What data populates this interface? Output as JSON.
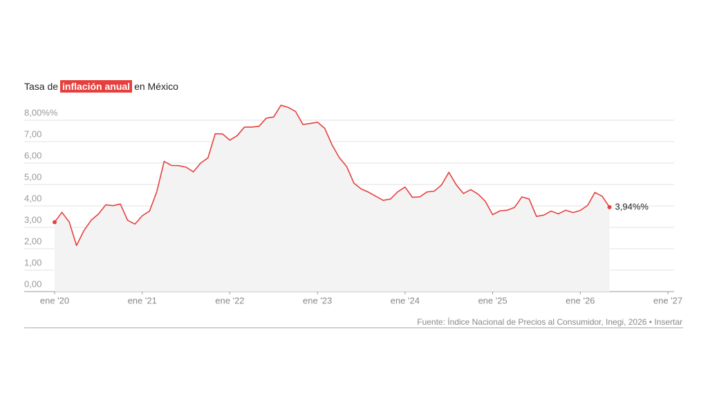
{
  "chart_data": {
    "type": "line",
    "title_parts": [
      "Tasa de",
      "inflación anual",
      "en México"
    ],
    "x": [
      "2020-01",
      "2020-02",
      "2020-03",
      "2020-04",
      "2020-05",
      "2020-06",
      "2020-07",
      "2020-08",
      "2020-09",
      "2020-10",
      "2020-11",
      "2020-12",
      "2021-01",
      "2021-02",
      "2021-03",
      "2021-04",
      "2021-05",
      "2021-06",
      "2021-07",
      "2021-08",
      "2021-09",
      "2021-10",
      "2021-11",
      "2021-12",
      "2022-01",
      "2022-02",
      "2022-03",
      "2022-04",
      "2022-05",
      "2022-06",
      "2022-07",
      "2022-08",
      "2022-09",
      "2022-10",
      "2022-11",
      "2022-12",
      "2023-01",
      "2023-02",
      "2023-03",
      "2023-04",
      "2023-05",
      "2023-06",
      "2023-07",
      "2023-08",
      "2023-09",
      "2023-10",
      "2023-11",
      "2023-12",
      "2024-01",
      "2024-02",
      "2024-03",
      "2024-04",
      "2024-05",
      "2024-06",
      "2024-07",
      "2024-08",
      "2024-09",
      "2024-10",
      "2024-11",
      "2024-12",
      "2025-01",
      "2025-02",
      "2025-03",
      "2025-04",
      "2025-05",
      "2025-06",
      "2025-07",
      "2025-08",
      "2025-09",
      "2025-10",
      "2025-11",
      "2025-12",
      "2026-01",
      "2026-02",
      "2026-03",
      "2026-04",
      "2026-05"
    ],
    "series": [
      {
        "name": "Inflación anual",
        "color": "#e5403d",
        "values": [
          3.24,
          3.7,
          3.25,
          2.15,
          2.84,
          3.33,
          3.62,
          4.05,
          4.01,
          4.09,
          3.33,
          3.15,
          3.54,
          3.76,
          4.67,
          6.08,
          5.89,
          5.88,
          5.81,
          5.59,
          6.0,
          6.24,
          7.37,
          7.36,
          7.07,
          7.28,
          7.68,
          7.68,
          7.72,
          8.1,
          8.15,
          8.7,
          8.6,
          8.41,
          7.8,
          7.85,
          7.91,
          7.62,
          6.85,
          6.25,
          5.84,
          5.06,
          4.79,
          4.64,
          4.45,
          4.26,
          4.32,
          4.66,
          4.88,
          4.4,
          4.42,
          4.65,
          4.69,
          4.98,
          5.57,
          4.99,
          4.58,
          4.76,
          4.55,
          4.21,
          3.59,
          3.77,
          3.8,
          3.93,
          4.42,
          4.32,
          3.51,
          3.57,
          3.76,
          3.63,
          3.8,
          3.69,
          3.79,
          4.02,
          4.63,
          4.45,
          3.94
        ],
        "value_labels": [
          null,
          null,
          null,
          null,
          null,
          null,
          null,
          null,
          null,
          null,
          null,
          null,
          null,
          null,
          null,
          null,
          null,
          null,
          null,
          null,
          null,
          null,
          null,
          null,
          null,
          null,
          null,
          null,
          null,
          null,
          null,
          null,
          null,
          null,
          null,
          null,
          null,
          null,
          null,
          null,
          null,
          null,
          null,
          null,
          null,
          null,
          null,
          null,
          null,
          null,
          null,
          null,
          null,
          null,
          null,
          null,
          null,
          null,
          null,
          null,
          null,
          null,
          null,
          null,
          null,
          null,
          null,
          null,
          null,
          null,
          null,
          null,
          null,
          null,
          null,
          null,
          "3,94%%"
        ]
      }
    ],
    "xlim": [
      "2020-01",
      "2027-01"
    ],
    "xticks": [
      {
        "value": "2020-01",
        "label": "ene '20"
      },
      {
        "value": "2021-01",
        "label": "ene '21"
      },
      {
        "value": "2022-01",
        "label": "ene '22"
      },
      {
        "value": "2023-01",
        "label": "ene '23"
      },
      {
        "value": "2024-01",
        "label": "ene '24"
      },
      {
        "value": "2025-01",
        "label": "ene '25"
      },
      {
        "value": "2026-01",
        "label": "ene '26"
      },
      {
        "value": "2027-01",
        "label": "ene '27"
      }
    ],
    "ylim": [
      0,
      8
    ],
    "yticks": [
      {
        "value": 0,
        "label": "0,00"
      },
      {
        "value": 1,
        "label": "1,00"
      },
      {
        "value": 2,
        "label": "2,00"
      },
      {
        "value": 3,
        "label": "3,00"
      },
      {
        "value": 4,
        "label": "4,00"
      },
      {
        "value": 5,
        "label": "5,00"
      },
      {
        "value": 6,
        "label": "6,00"
      },
      {
        "value": 7,
        "label": "7,00"
      },
      {
        "value": 8,
        "label": "8,00%%"
      }
    ],
    "grid": true,
    "source": "Fuente: Índice Nacional de Precios al Consumidor, Inegi, 2026",
    "embed": "Insertar"
  }
}
